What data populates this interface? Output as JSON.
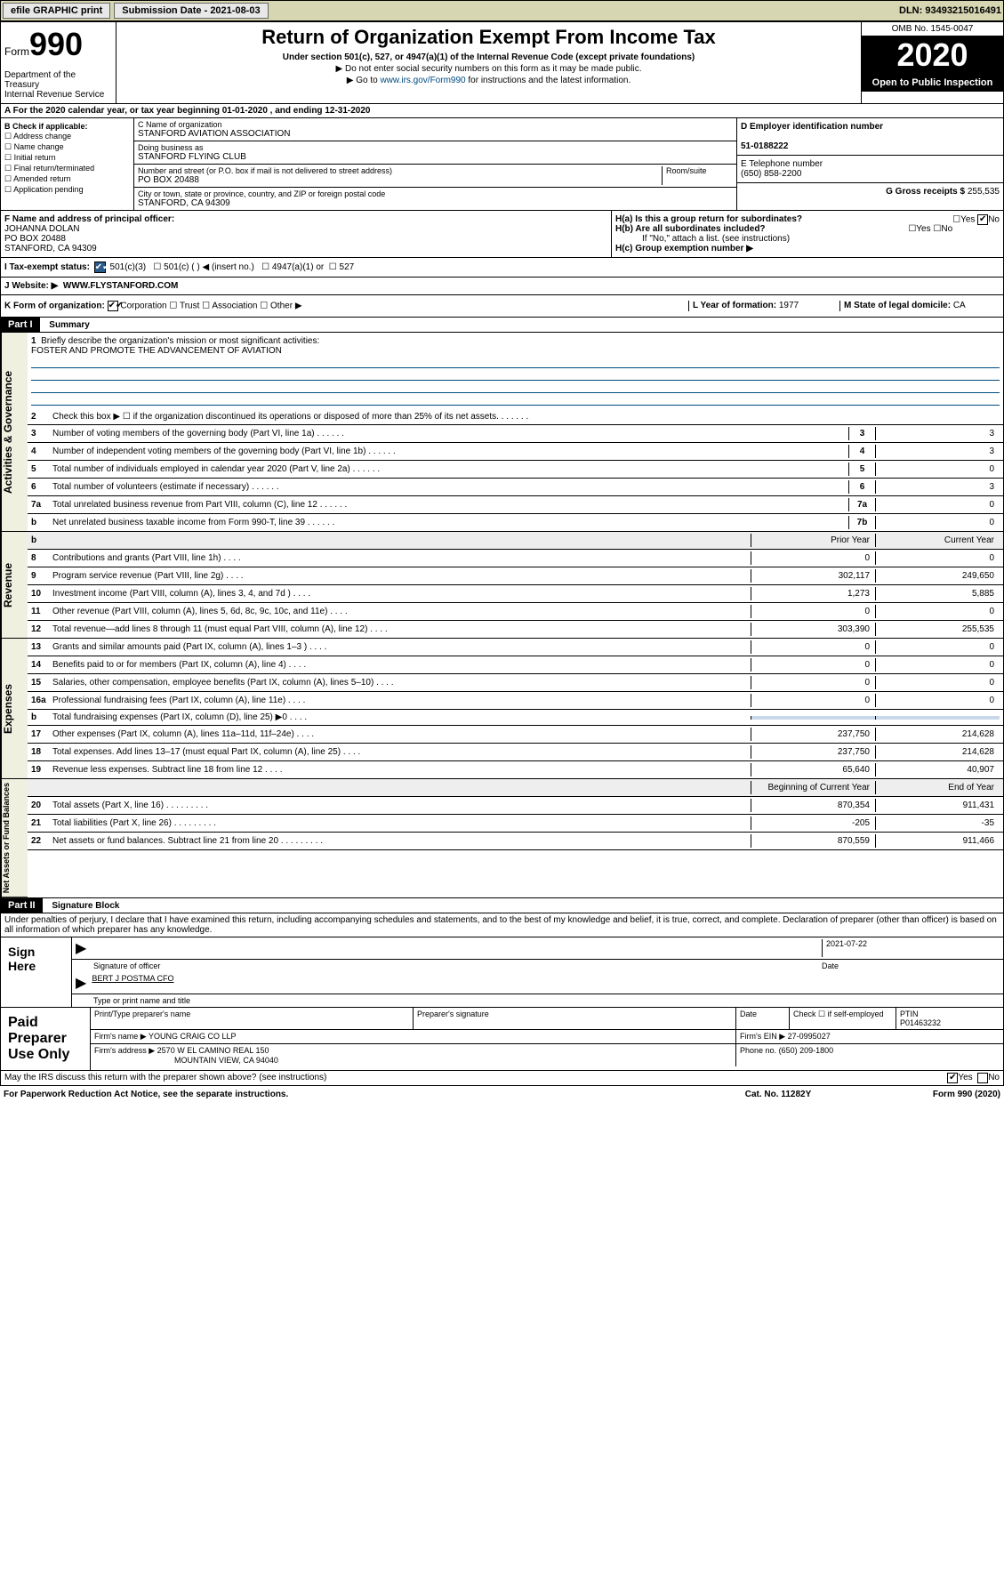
{
  "topbar": {
    "efile": "efile GRAPHIC print",
    "submission": "Submission Date - 2021-08-03",
    "dln": "DLN: 93493215016491"
  },
  "header": {
    "form_label": "Form",
    "form_num": "990",
    "dept": "Department of the Treasury\nInternal Revenue Service",
    "title": "Return of Organization Exempt From Income Tax",
    "sub": "Under section 501(c), 527, or 4947(a)(1) of the Internal Revenue Code (except private foundations)",
    "note1": "▶ Do not enter social security numbers on this form as it may be made public.",
    "note2_pre": "▶ Go to ",
    "note2_link": "www.irs.gov/Form990",
    "note2_post": " for instructions and the latest information.",
    "omb": "OMB No. 1545-0047",
    "year": "2020",
    "open": "Open to Public Inspection"
  },
  "yearline": "A For the 2020 calendar year, or tax year beginning 01-01-2020   , and ending 12-31-2020",
  "boxB": {
    "title": "B Check if applicable:",
    "items": [
      "Address change",
      "Name change",
      "Initial return",
      "Final return/terminated",
      "Amended return",
      "Application pending"
    ]
  },
  "boxC": {
    "name_lbl": "C Name of organization",
    "name": "STANFORD AVIATION ASSOCIATION",
    "dba_lbl": "Doing business as",
    "dba": "STANFORD FLYING CLUB",
    "addr_lbl": "Number and street (or P.O. box if mail is not delivered to street address)",
    "room_lbl": "Room/suite",
    "addr": "PO BOX 20488",
    "city_lbl": "City or town, state or province, country, and ZIP or foreign postal code",
    "city": "STANFORD, CA  94309"
  },
  "boxD": {
    "lbl": "D Employer identification number",
    "val": "51-0188222"
  },
  "boxE": {
    "lbl": "E Telephone number",
    "val": "(650) 858-2200"
  },
  "boxG": {
    "lbl": "G Gross receipts $",
    "val": "255,535"
  },
  "boxF": {
    "lbl": "F  Name and address of principal officer:",
    "name": "JOHANNA DOLAN",
    "addr1": "PO BOX 20488",
    "addr2": "STANFORD, CA  94309"
  },
  "boxH": {
    "ha": "H(a)  Is this a group return for subordinates?",
    "hb": "H(b)  Are all subordinates included?",
    "hb_note": "If \"No,\" attach a list. (see instructions)",
    "hc": "H(c)  Group exemption number ▶",
    "ha_ans_no": true
  },
  "taxI": {
    "lbl": "I     Tax-exempt status:",
    "c501c3": "501(c)(3)",
    "c501c": "501(c) (   ) ◀ (insert no.)",
    "c4947": "4947(a)(1) or",
    "c527": "527"
  },
  "taxJ": {
    "lbl": "J     Website: ▶",
    "val": "WWW.FLYSTANFORD.COM"
  },
  "boxK": {
    "lbl": "K Form of organization:",
    "corp": "Corporation",
    "trust": "Trust",
    "assoc": "Association",
    "other": "Other ▶"
  },
  "boxL": {
    "lbl": "L Year of formation:",
    "val": "1977"
  },
  "boxM": {
    "lbl": "M State of legal domicile:",
    "val": "CA"
  },
  "part1": {
    "num": "Part I",
    "title": "Summary"
  },
  "mission": {
    "n": "1",
    "lbl": "Briefly describe the organization's mission or most significant activities:",
    "val": "FOSTER AND PROMOTE THE ADVANCEMENT OF AVIATION"
  },
  "summary_lines": [
    {
      "n": "2",
      "t": "Check this box ▶ ☐  if the organization discontinued its operations or disposed of more than 25% of its net assets."
    },
    {
      "n": "3",
      "t": "Number of voting members of the governing body (Part VI, line 1a)",
      "box": "3",
      "v": "3"
    },
    {
      "n": "4",
      "t": "Number of independent voting members of the governing body (Part VI, line 1b)",
      "box": "4",
      "v": "3"
    },
    {
      "n": "5",
      "t": "Total number of individuals employed in calendar year 2020 (Part V, line 2a)",
      "box": "5",
      "v": "0"
    },
    {
      "n": "6",
      "t": "Total number of volunteers (estimate if necessary)",
      "box": "6",
      "v": "3"
    },
    {
      "n": "7a",
      "t": "Total unrelated business revenue from Part VIII, column (C), line 12",
      "box": "7a",
      "v": "0"
    },
    {
      "n": "b",
      "t": "Net unrelated business taxable income from Form 990-T, line 39",
      "box": "7b",
      "v": "0"
    }
  ],
  "twocol_hdr": {
    "prior": "Prior Year",
    "current": "Current Year",
    "begin": "Beginning of Current Year",
    "end": "End of Year"
  },
  "revenue": [
    {
      "n": "8",
      "t": "Contributions and grants (Part VIII, line 1h)",
      "p": "0",
      "c": "0"
    },
    {
      "n": "9",
      "t": "Program service revenue (Part VIII, line 2g)",
      "p": "302,117",
      "c": "249,650"
    },
    {
      "n": "10",
      "t": "Investment income (Part VIII, column (A), lines 3, 4, and 7d )",
      "p": "1,273",
      "c": "5,885"
    },
    {
      "n": "11",
      "t": "Other revenue (Part VIII, column (A), lines 5, 6d, 8c, 9c, 10c, and 11e)",
      "p": "0",
      "c": "0"
    },
    {
      "n": "12",
      "t": "Total revenue—add lines 8 through 11 (must equal Part VIII, column (A), line 12)",
      "p": "303,390",
      "c": "255,535"
    }
  ],
  "expenses": [
    {
      "n": "13",
      "t": "Grants and similar amounts paid (Part IX, column (A), lines 1–3 )",
      "p": "0",
      "c": "0"
    },
    {
      "n": "14",
      "t": "Benefits paid to or for members (Part IX, column (A), line 4)",
      "p": "0",
      "c": "0"
    },
    {
      "n": "15",
      "t": "Salaries, other compensation, employee benefits (Part IX, column (A), lines 5–10)",
      "p": "0",
      "c": "0"
    },
    {
      "n": "16a",
      "t": "Professional fundraising fees (Part IX, column (A), line 11e)",
      "p": "0",
      "c": "0"
    },
    {
      "n": "b",
      "t": "Total fundraising expenses (Part IX, column (D), line 25) ▶0",
      "p": "",
      "c": "",
      "shaded": true
    },
    {
      "n": "17",
      "t": "Other expenses (Part IX, column (A), lines 11a–11d, 11f–24e)",
      "p": "237,750",
      "c": "214,628"
    },
    {
      "n": "18",
      "t": "Total expenses. Add lines 13–17 (must equal Part IX, column (A), line 25)",
      "p": "237,750",
      "c": "214,628"
    },
    {
      "n": "19",
      "t": "Revenue less expenses. Subtract line 18 from line 12",
      "p": "65,640",
      "c": "40,907"
    }
  ],
  "netassets": [
    {
      "n": "20",
      "t": "Total assets (Part X, line 16)",
      "p": "870,354",
      "c": "911,431"
    },
    {
      "n": "21",
      "t": "Total liabilities (Part X, line 26)",
      "p": "-205",
      "c": "-35"
    },
    {
      "n": "22",
      "t": "Net assets or fund balances. Subtract line 21 from line 20",
      "p": "870,559",
      "c": "911,466"
    }
  ],
  "sidelabels": {
    "gov": "Activities & Governance",
    "rev": "Revenue",
    "exp": "Expenses",
    "net": "Net Assets or Fund Balances"
  },
  "part2": {
    "num": "Part II",
    "title": "Signature Block"
  },
  "perjury": "Under penalties of perjury, I declare that I have examined this return, including accompanying schedules and statements, and to the best of my knowledge and belief, it is true, correct, and complete. Declaration of preparer (other than officer) is based on all information of which preparer has any knowledge.",
  "sign": {
    "lbl": "Sign Here",
    "sig_lbl": "Signature of officer",
    "date": "2021-07-22",
    "date_lbl": "Date",
    "name": "BERT J POSTMA CFO",
    "name_lbl": "Type or print name and title"
  },
  "paid": {
    "lbl": "Paid Preparer Use Only",
    "h1": "Print/Type preparer's name",
    "h2": "Preparer's signature",
    "h3": "Date",
    "h4_check": "Check ☐ if self-employed",
    "h5": "PTIN",
    "ptin": "P01463232",
    "firm_lbl": "Firm's name    ▶",
    "firm": "YOUNG CRAIG CO LLP",
    "ein_lbl": "Firm's EIN ▶",
    "ein": "27-0995027",
    "addr_lbl": "Firm's address ▶",
    "addr": "2570 W EL CAMINO REAL 150",
    "addr2": "MOUNTAIN VIEW, CA  94040",
    "phone_lbl": "Phone no.",
    "phone": "(650) 209-1800"
  },
  "discuss": {
    "q": "May the IRS discuss this return with the preparer shown above? (see instructions)",
    "yes": "Yes",
    "no": "No",
    "checked": "yes"
  },
  "paperwork": {
    "l": "For Paperwork Reduction Act Notice, see the separate instructions.",
    "m": "Cat. No. 11282Y",
    "r": "Form 990 (2020)"
  }
}
